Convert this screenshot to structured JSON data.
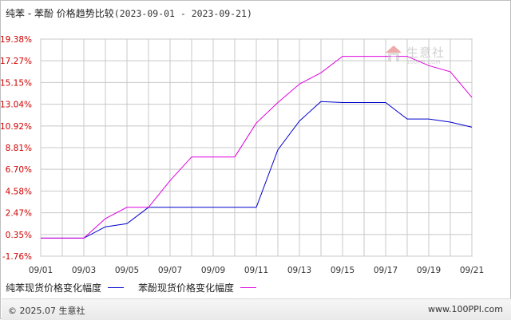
{
  "header": {
    "title": "纯苯 - 苯酚 价格趋势比较",
    "date_range": "(2023-09-01 - 2023-09-21)"
  },
  "footer": {
    "copyright": "© 2025.07 生意社",
    "site": "www.100PPI.com"
  },
  "watermark": {
    "text": "生意社",
    "url": "100PPI.COM"
  },
  "colors": {
    "benzene": "#0000cc",
    "phenol": "#e000e0",
    "grid": "#c8c8c8",
    "ytick": "#d00000"
  },
  "chart_data": {
    "type": "line",
    "title": "纯苯 - 苯酚 价格趋势比较",
    "xlabel": "",
    "ylabel": "",
    "ylim": [
      -1.76,
      19.38
    ],
    "yticks": [
      "19.38%",
      "17.27%",
      "15.15%",
      "13.04%",
      "10.92%",
      "8.81%",
      "6.70%",
      "4.58%",
      "2.47%",
      "0.35%",
      "-1.76%"
    ],
    "ytick_values": [
      19.38,
      17.27,
      15.15,
      13.04,
      10.92,
      8.81,
      6.7,
      4.58,
      2.47,
      0.35,
      -1.76
    ],
    "x": [
      "09/01",
      "09/02",
      "09/03",
      "09/04",
      "09/05",
      "09/06",
      "09/07",
      "09/08",
      "09/09",
      "09/10",
      "09/11",
      "09/12",
      "09/13",
      "09/14",
      "09/15",
      "09/16",
      "09/17",
      "09/18",
      "09/19",
      "09/20",
      "09/21"
    ],
    "xticks": [
      "09/01",
      "09/03",
      "09/05",
      "09/07",
      "09/09",
      "09/11",
      "09/13",
      "09/15",
      "09/17",
      "09/19",
      "09/21"
    ],
    "grid": true,
    "legend_position": "bottom-left",
    "series": [
      {
        "name": "纯苯现货价格变化幅度",
        "color": "#0000cc",
        "values": [
          0.0,
          0.0,
          0.0,
          1.1,
          1.4,
          3.0,
          3.0,
          3.0,
          3.0,
          3.0,
          3.0,
          8.6,
          11.4,
          13.3,
          13.2,
          13.2,
          13.2,
          11.6,
          11.6,
          11.3,
          10.8
        ]
      },
      {
        "name": "苯酚现货价格变化幅度",
        "color": "#e000e0",
        "values": [
          0.0,
          0.0,
          0.0,
          1.9,
          3.0,
          3.0,
          5.6,
          7.9,
          7.9,
          7.9,
          11.2,
          13.2,
          15.0,
          16.1,
          17.7,
          17.7,
          17.7,
          17.7,
          16.8,
          16.2,
          13.7
        ]
      }
    ]
  }
}
